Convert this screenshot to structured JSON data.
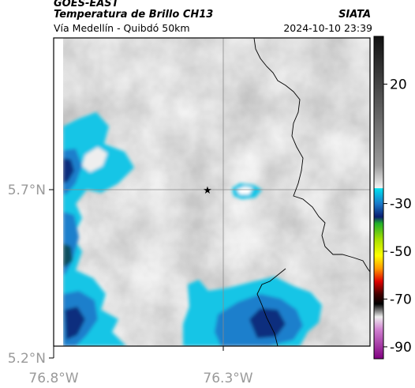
{
  "header": {
    "satellite": "GOES-EAST",
    "product": "Temperatura de Brillo CH13",
    "region": "Vía Medellín - Quibdó 50km",
    "organization": "SIATA",
    "datetime": "2024-10-10 23:39"
  },
  "map": {
    "lat_ticks": [
      {
        "value": 5.7,
        "label": "5.7°N"
      },
      {
        "value": 5.2,
        "label": "5.2°N"
      }
    ],
    "lon_ticks": [
      {
        "value": -76.8,
        "label": "76.8°W"
      },
      {
        "value": -76.3,
        "label": "76.3°W"
      }
    ],
    "marker": "star-marker",
    "colors": {
      "cloud_gray": "#a9a9a9",
      "cold_cyan": "#00c8e8",
      "cold_blue": "#1f6fc0",
      "deep_blue": "#0b2f80",
      "border_line": "#000000"
    }
  },
  "colorbar": {
    "ticks": [
      {
        "value": 20,
        "label": "20"
      },
      {
        "value": -30,
        "label": "-30"
      },
      {
        "value": -50,
        "label": "-50"
      },
      {
        "value": -70,
        "label": "-70"
      },
      {
        "value": -90,
        "label": "-90"
      }
    ],
    "range": [
      40,
      -95
    ]
  }
}
